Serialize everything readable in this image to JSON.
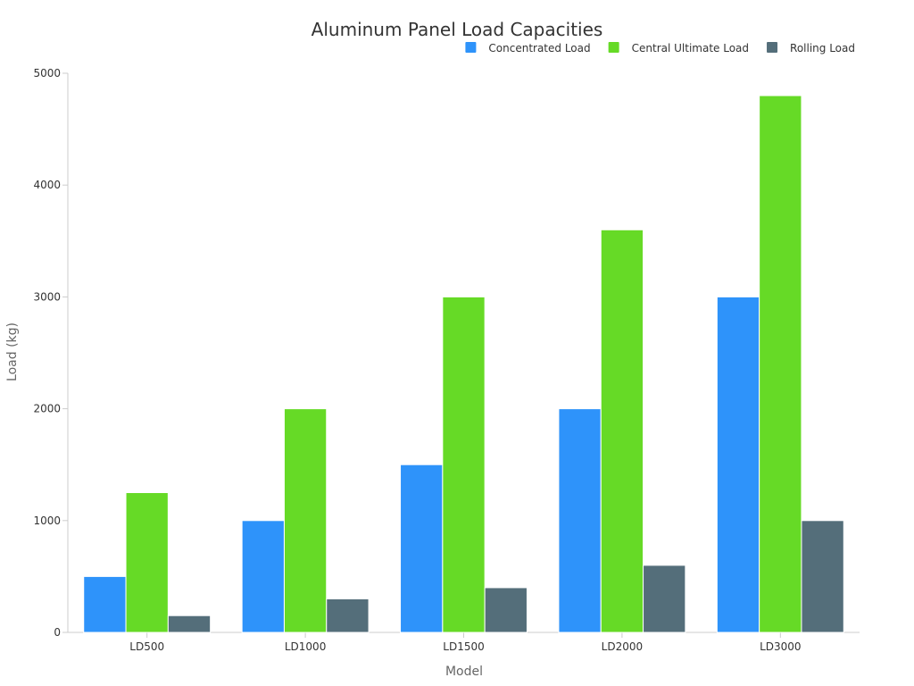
{
  "chart_data": {
    "type": "bar",
    "title": "Aluminum Panel Load Capacities",
    "xlabel": "Model",
    "ylabel": "Load (kg)",
    "categories": [
      "LD500",
      "LD1000",
      "LD1500",
      "LD2000",
      "LD3000"
    ],
    "ylim": [
      0,
      5000
    ],
    "yticks": [
      0,
      1000,
      2000,
      3000,
      4000,
      5000
    ],
    "grid": false,
    "legend_position": "top-right",
    "series": [
      {
        "name": "Concentrated Load",
        "color": "#2e93fa",
        "values": [
          500,
          1000,
          1500,
          2000,
          3000
        ]
      },
      {
        "name": "Central Ultimate Load",
        "color": "#66da26",
        "values": [
          1250,
          2000,
          3000,
          3600,
          4800
        ]
      },
      {
        "name": "Rolling Load",
        "color": "#546e7a",
        "values": [
          150,
          300,
          400,
          600,
          1000
        ]
      }
    ]
  }
}
